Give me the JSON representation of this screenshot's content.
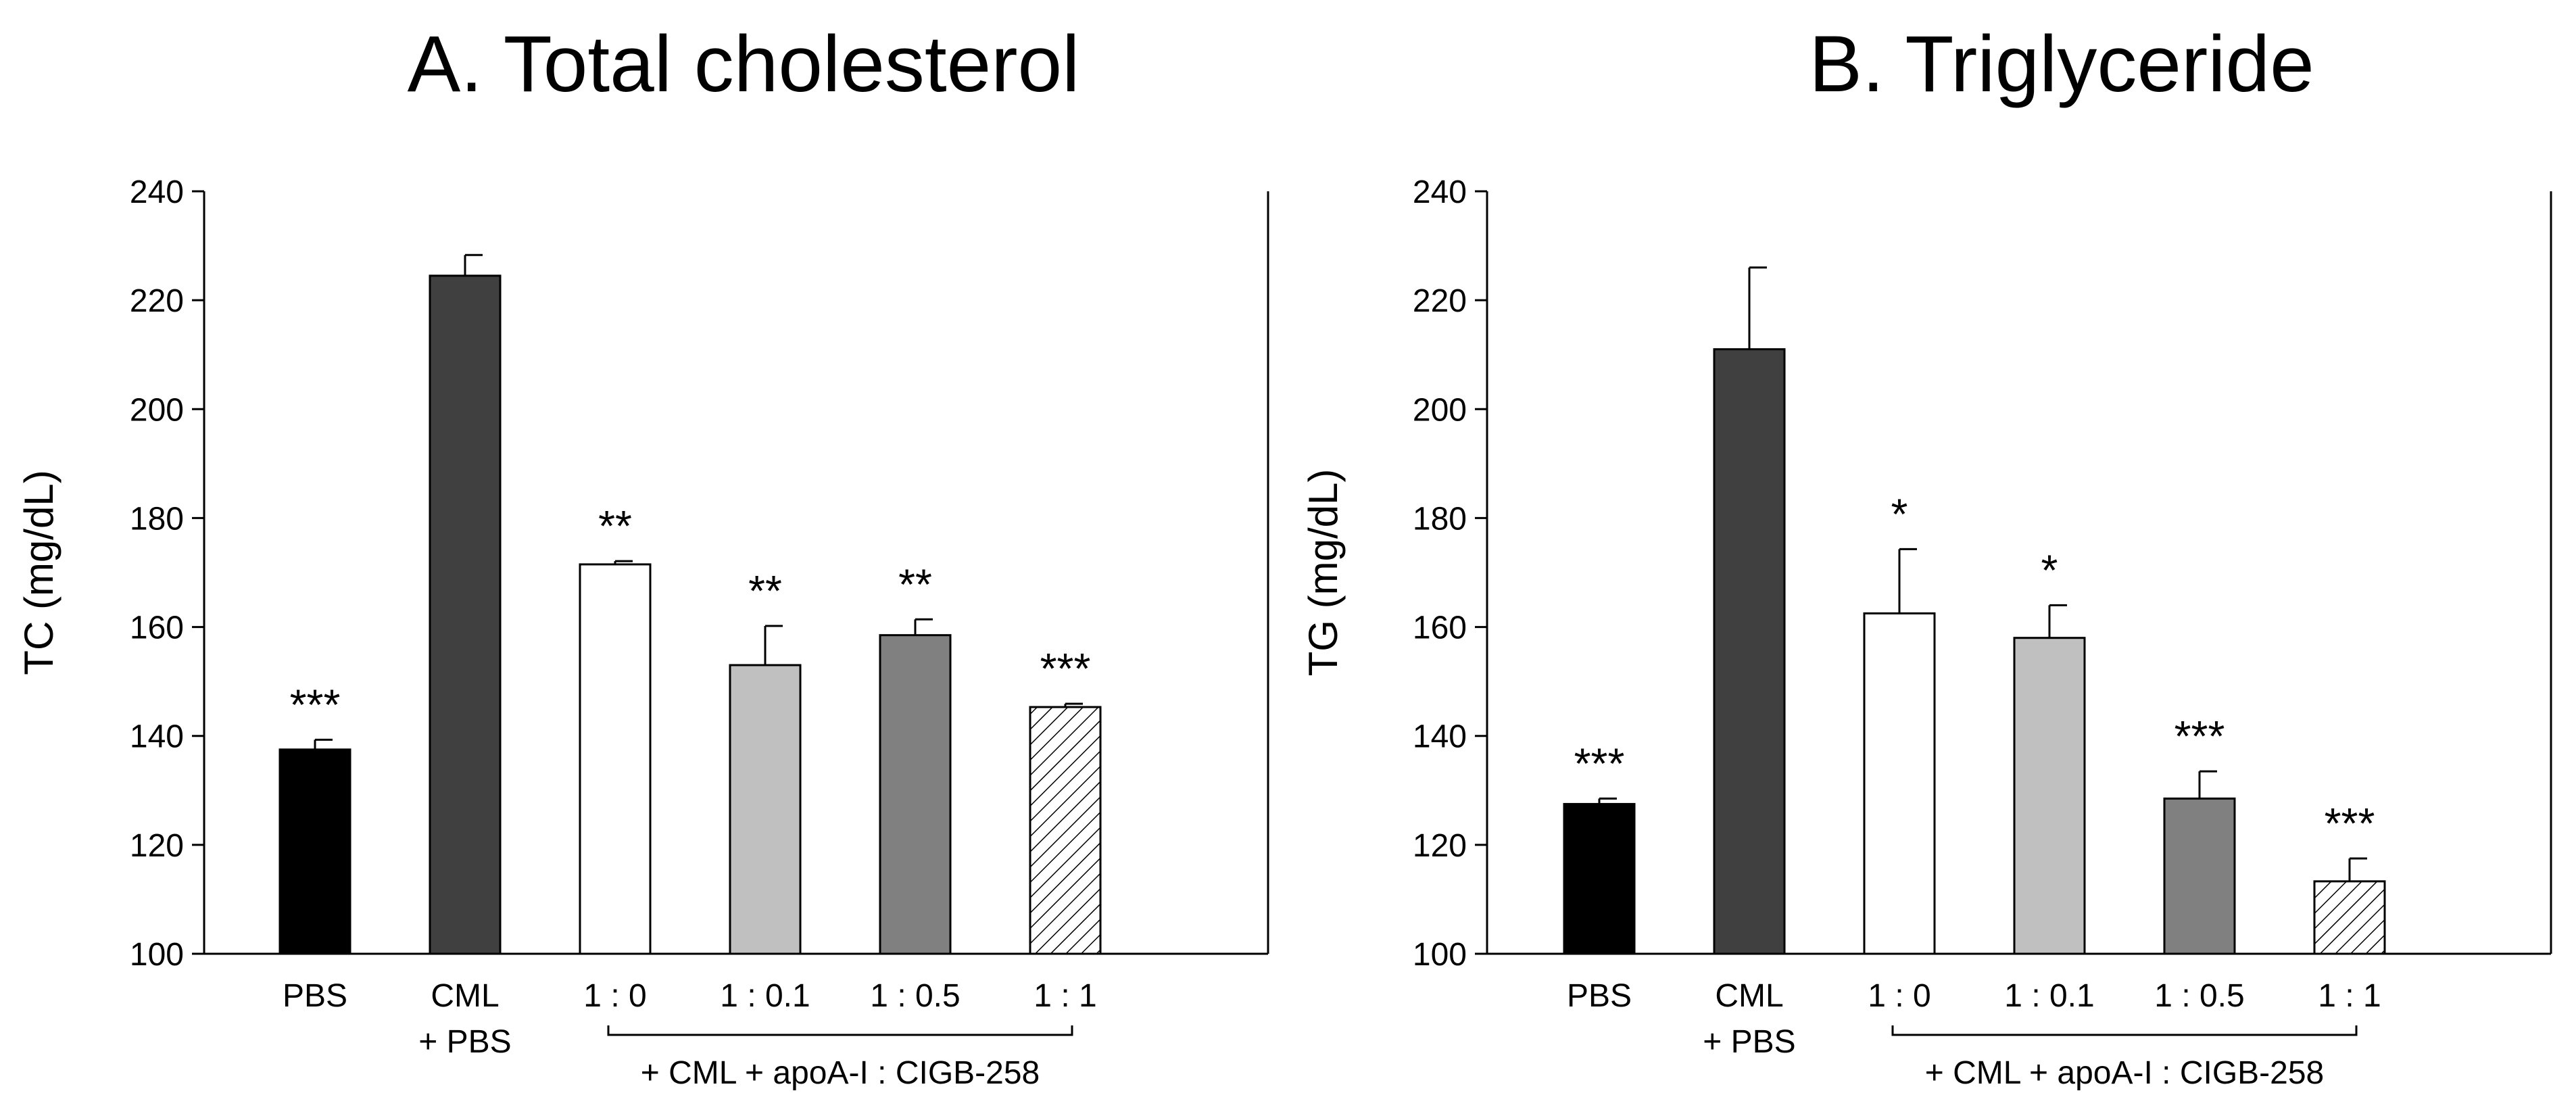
{
  "chart_data": [
    {
      "type": "bar",
      "title": "A. Total cholesterol",
      "ylabel": "TC (mg/dL)",
      "xlabel": "",
      "ylim": [
        100,
        240
      ],
      "yticks": [
        100,
        120,
        140,
        160,
        180,
        200,
        220,
        240
      ],
      "categories": [
        {
          "line1": "PBS",
          "line2": ""
        },
        {
          "line1": "CML",
          "line2": "+ PBS"
        },
        {
          "line1": "1 : 0",
          "line2": ""
        },
        {
          "line1": "1 : 0.1",
          "line2": ""
        },
        {
          "line1": "1 : 0.5",
          "line2": ""
        },
        {
          "line1": "1 : 1",
          "line2": ""
        }
      ],
      "values": [
        137.5,
        224.5,
        171.5,
        153.0,
        158.5,
        145.3
      ],
      "errors": [
        1.8,
        3.8,
        0.6,
        7.2,
        2.9,
        0.6
      ],
      "significance": [
        "***",
        "",
        "**",
        "**",
        "**",
        "***"
      ],
      "fills": [
        "#000000",
        "#404040",
        "#ffffff",
        "#c0c0c0",
        "#808080",
        "hatch"
      ],
      "bracket": {
        "label": "+ CML + apoA-I : CIGB-258",
        "from": 2,
        "to": 5
      }
    },
    {
      "type": "bar",
      "title": "B. Triglyceride",
      "ylabel": "TG (mg/dL)",
      "xlabel": "",
      "ylim": [
        100,
        240
      ],
      "yticks": [
        100,
        120,
        140,
        160,
        180,
        200,
        220,
        240
      ],
      "categories": [
        {
          "line1": "PBS",
          "line2": ""
        },
        {
          "line1": "CML",
          "line2": "+ PBS"
        },
        {
          "line1": "1 : 0",
          "line2": ""
        },
        {
          "line1": "1 : 0.1",
          "line2": ""
        },
        {
          "line1": "1 : 0.5",
          "line2": ""
        },
        {
          "line1": "1 : 1",
          "line2": ""
        }
      ],
      "values": [
        127.5,
        211.0,
        162.5,
        158.0,
        128.5,
        113.3
      ],
      "errors": [
        1.0,
        15.0,
        11.8,
        6.0,
        5.0,
        4.2
      ],
      "significance": [
        "***",
        "",
        "*",
        "*",
        "***",
        "***"
      ],
      "fills": [
        "#000000",
        "#404040",
        "#ffffff",
        "#c0c0c0",
        "#808080",
        "hatch"
      ],
      "bracket": {
        "label": "+ CML + apoA-I : CIGB-258",
        "from": 2,
        "to": 5
      }
    }
  ]
}
